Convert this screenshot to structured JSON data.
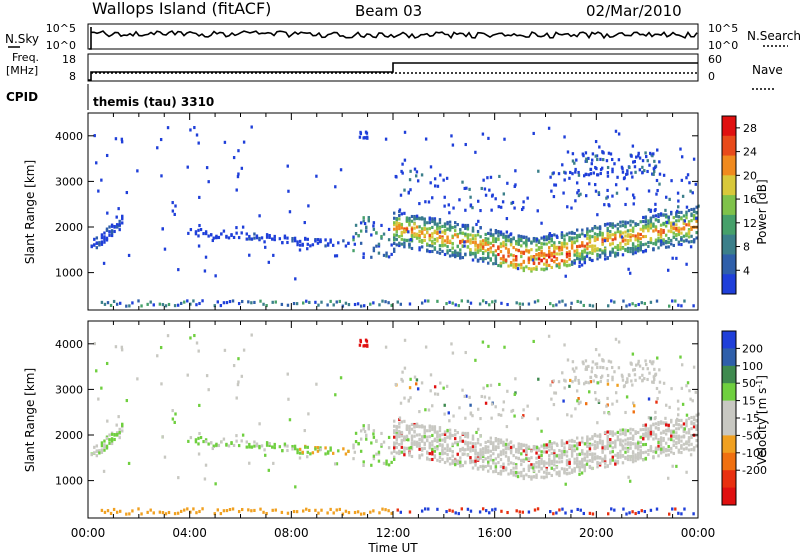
{
  "header": {
    "station": "Wallops Island (fitACF)",
    "beam": "Beam 03",
    "date": "02/Mar/2010"
  },
  "top_panels": {
    "nsky_label": "N.Sky",
    "nsky_ticks": [
      "10^5",
      "10^0"
    ],
    "nsearch_label": "N.Search",
    "nsearch_ticks": [
      "10^5",
      "10^0"
    ],
    "freq_label": "Freq.",
    "freq_unit": "[MHz]",
    "freq_ticks": [
      "18",
      "8"
    ],
    "nave_label": "Nave",
    "nave_ticks": [
      "60",
      "0"
    ],
    "cpid_label": "CPID",
    "cpid_value": "themis (tau) 3310"
  },
  "colors": {
    "power": [
      "#1f3fd9",
      "#2f5faa",
      "#3b7f8a",
      "#46a06a",
      "#7fc24a",
      "#d8c83a",
      "#f08a1e",
      "#e84a1a",
      "#e01010"
    ],
    "velocity": [
      "#1f3fd9",
      "#2f5faa",
      "#3f8a4f",
      "#6fcf3f",
      "#c8c8c2",
      "#c8c8c2",
      "#f0a020",
      "#f07010",
      "#e83010",
      "#e01010"
    ],
    "noise": "#000000"
  },
  "chart_data": [
    {
      "type": "heatmap",
      "title": "Power",
      "xlabel": "",
      "ylabel": "Slant Range [km]",
      "x_ticks": [
        "00:00",
        "04:00",
        "08:00",
        "12:00",
        "16:00",
        "20:00",
        "00:00"
      ],
      "y_ticks": [
        "1000",
        "2000",
        "3000",
        "4000"
      ],
      "ylim": [
        180,
        4500
      ],
      "xlim_hours": [
        0,
        24
      ],
      "colorbar_label": "Power [dB]",
      "colorbar_ticks": [
        "4",
        "8",
        "12",
        "16",
        "20",
        "24",
        "28"
      ],
      "colorbar_range": [
        0,
        30
      ],
      "grid": false
    },
    {
      "type": "heatmap",
      "title": "Velocity",
      "xlabel": "Time UT",
      "ylabel": "Slant Range [km]",
      "x_ticks": [
        "00:00",
        "04:00",
        "08:00",
        "12:00",
        "16:00",
        "20:00",
        "00:00"
      ],
      "y_ticks": [
        "1000",
        "2000",
        "3000",
        "4000"
      ],
      "ylim": [
        180,
        4500
      ],
      "xlim_hours": [
        0,
        24
      ],
      "colorbar_label": "Velocity [m s",
      "colorbar_unit_sup": "-1",
      "colorbar_unit_end": "]",
      "colorbar_ticks": [
        "200",
        "100",
        "50",
        "15",
        "-15",
        "-50",
        "-100",
        "-200"
      ],
      "grid": false
    }
  ]
}
